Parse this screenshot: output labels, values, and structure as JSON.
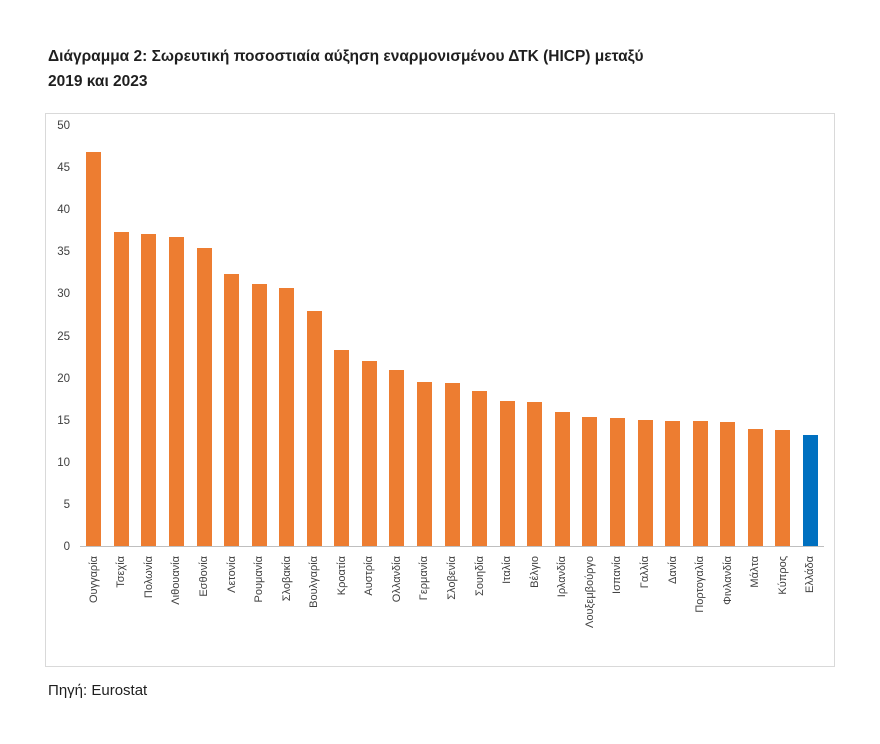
{
  "page": {
    "title_line1": "Διάγραμμα 2: Σωρευτική ποσοστιαία αύξηση εναρμονισμένου ΔΤΚ (HICP)  μεταξύ",
    "title_line2": "2019 και 2023",
    "source": "Πηγή: Eurostat"
  },
  "chart_data": {
    "type": "bar",
    "title": "Διάγραμμα 2: Σωρευτική ποσοστιαία αύξηση εναρμονισμένου ΔΤΚ (HICP) μεταξύ 2019 και 2023",
    "categories": [
      "Ουγγαρία",
      "Τσεχία",
      "Πολωνία",
      "Λιθουανία",
      "Εσθονία",
      "Λετονία",
      "Ρουμανία",
      "Σλοβακία",
      "Βουλγαρία",
      "Κροατία",
      "Αυστρία",
      "Ολλανδία",
      "Γερμανία",
      "Σλοβενία",
      "Σουηδία",
      "Ιταλία",
      "Βέλγιο",
      "Ιρλανδία",
      "Λουξεμβούργο",
      "Ισπανία",
      "Γαλλία",
      "Δανία",
      "Πορτογαλία",
      "Φινλανδία",
      "Μάλτα",
      "Κύπρος",
      "Ελλάδα"
    ],
    "values": [
      46.9,
      37.4,
      37.1,
      36.8,
      35.5,
      32.4,
      31.2,
      30.7,
      28.0,
      23.3,
      22.0,
      21.0,
      19.5,
      19.4,
      18.5,
      17.3,
      17.2,
      16.0,
      15.3,
      15.2,
      15.0,
      14.9,
      14.9,
      14.8,
      13.9,
      13.8,
      13.2
    ],
    "bar_color": "#ED7D31",
    "highlight_color": "#0070C0",
    "highlight_index": 26,
    "xlabel": "",
    "ylabel": "",
    "ylim": [
      0,
      50
    ],
    "ytick_step": 5,
    "grid": false,
    "legend": false,
    "source": "Πηγή: Eurostat"
  }
}
